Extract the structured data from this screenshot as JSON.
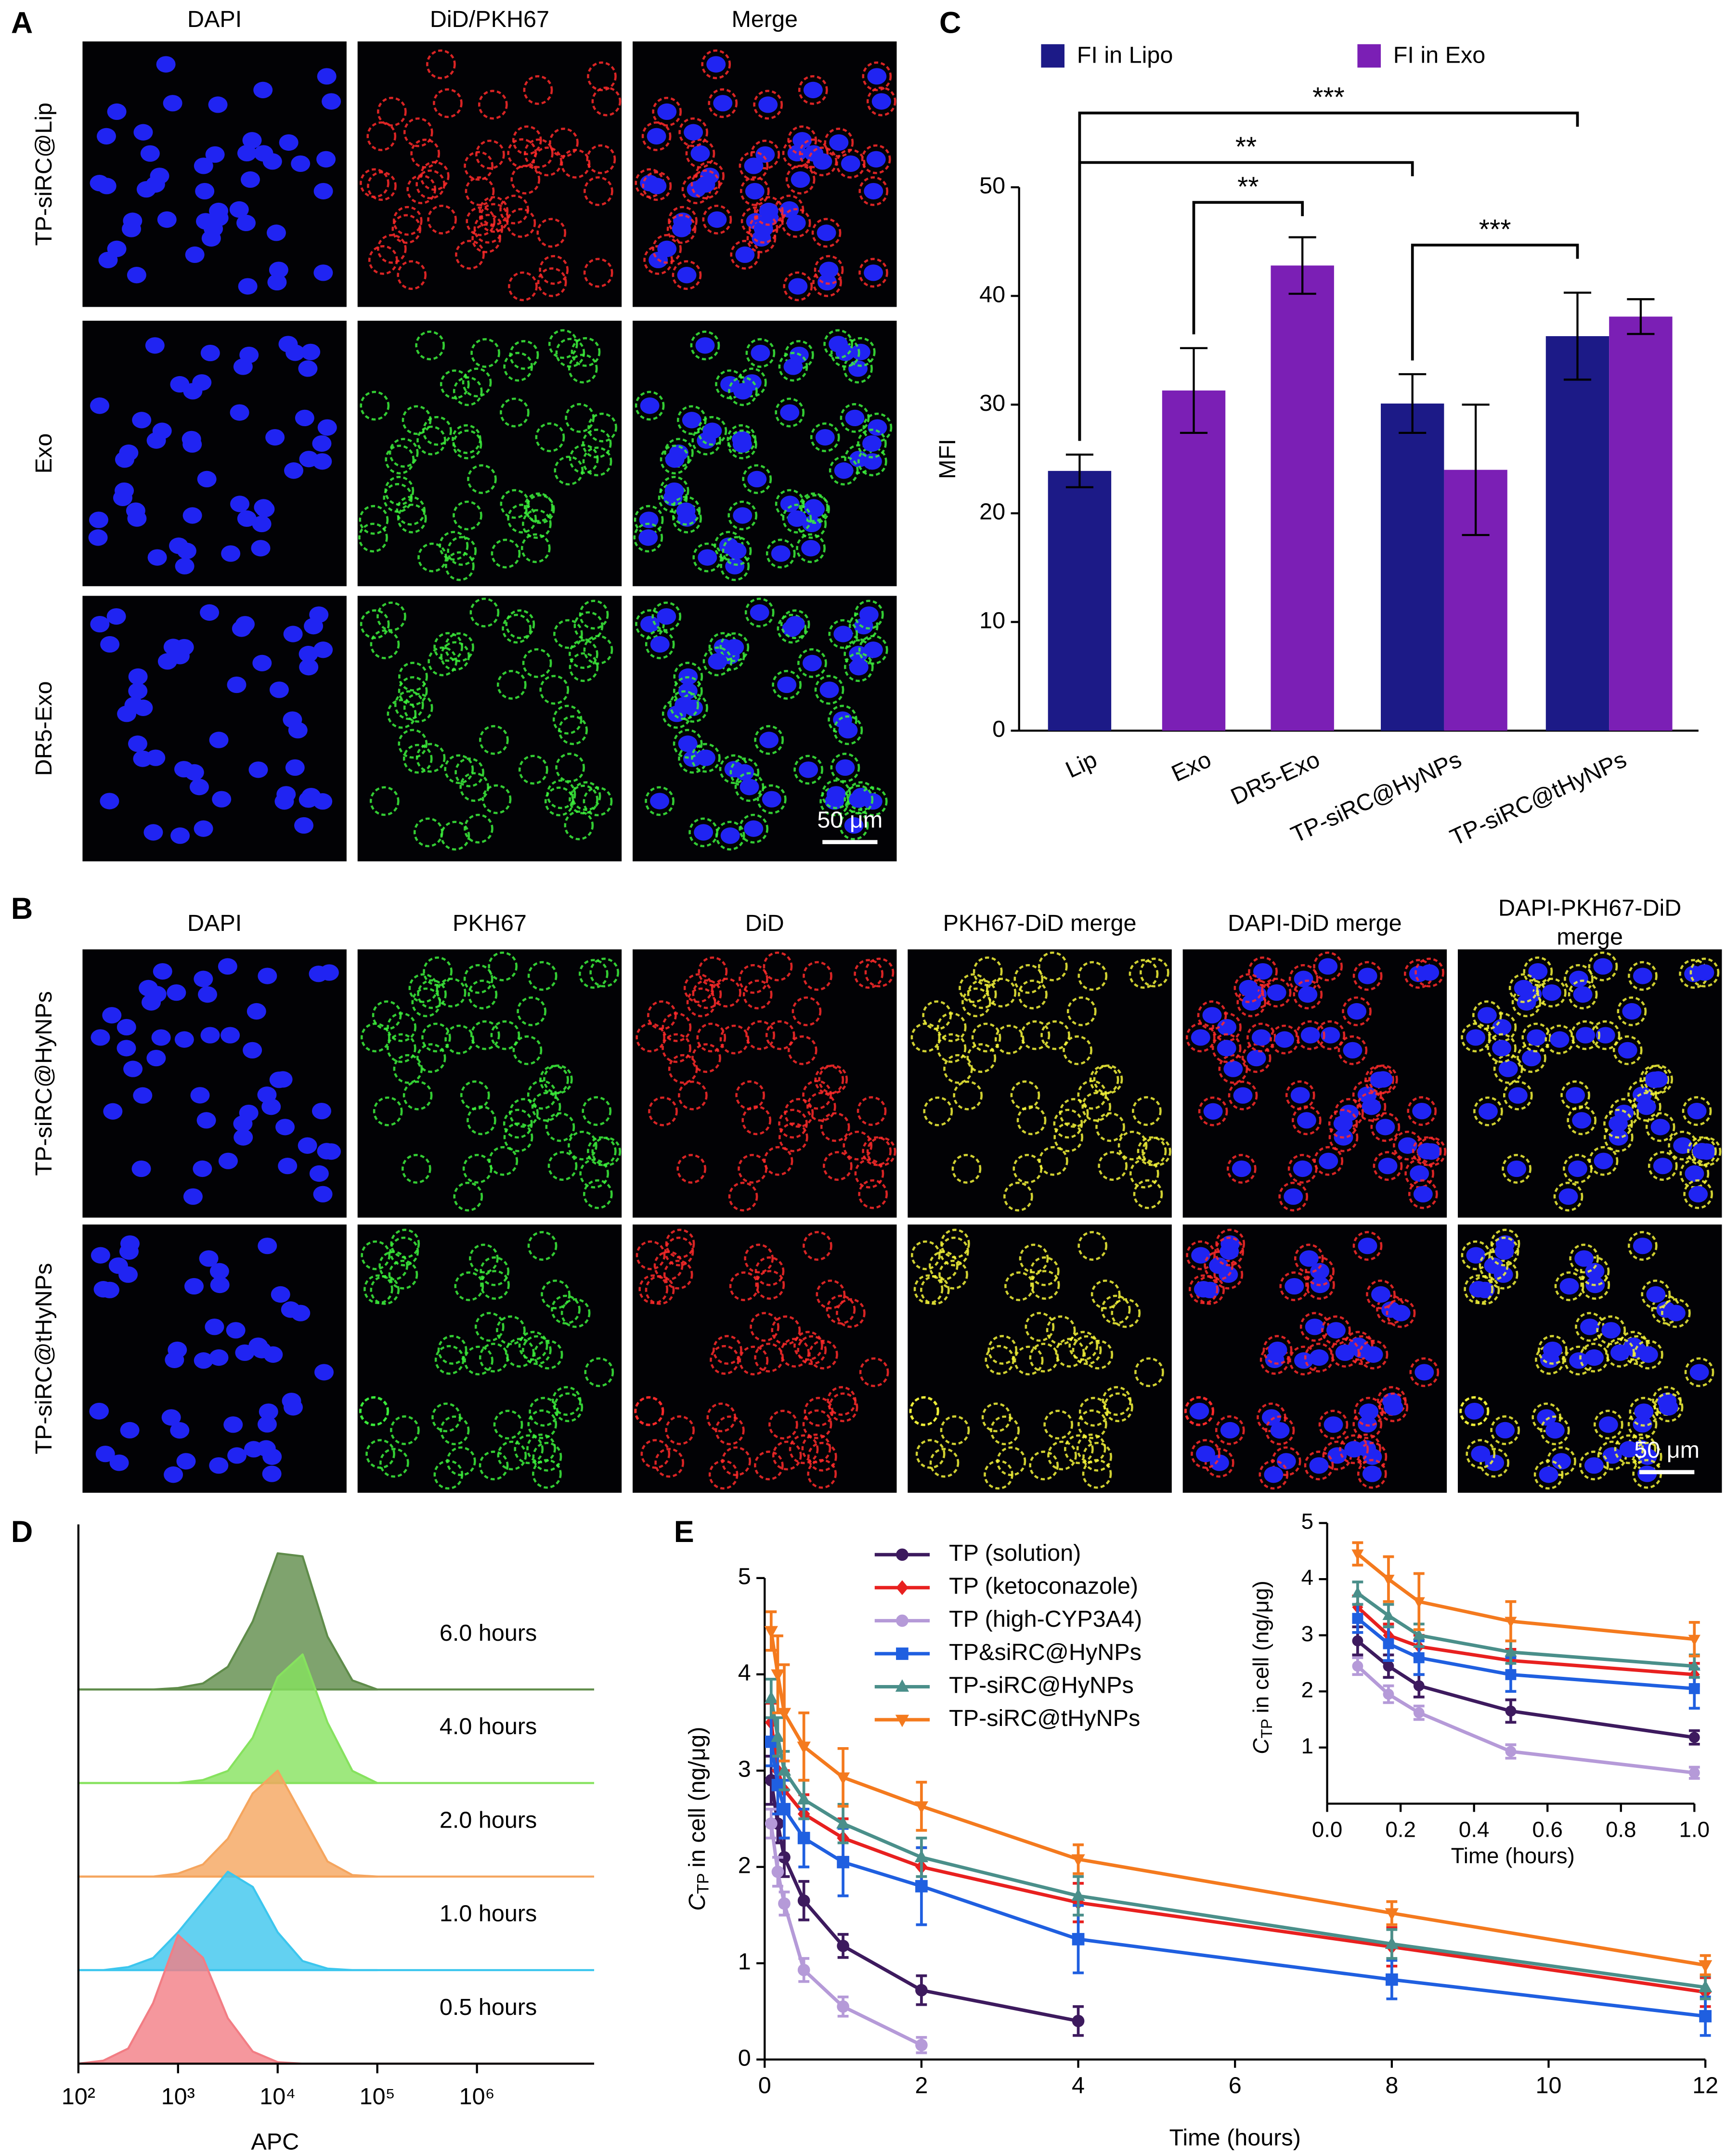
{
  "panel_labels": [
    "A",
    "B",
    "C",
    "D",
    "E"
  ],
  "panel_a": {
    "columns": [
      "DAPI",
      "DiD/PKH67",
      "Merge"
    ],
    "rows": [
      "TP-siRC@Lip",
      "Exo",
      "DR5-Exo"
    ],
    "scale_bar": "50 μm"
  },
  "panel_b": {
    "columns": [
      "DAPI",
      "PKH67",
      "DiD",
      "PKH67-DiD merge",
      "DAPI-DiD merge",
      "DAPI-PKH67-DiD merge"
    ],
    "rows": [
      "TP-siRC@HyNPs",
      "TP-siRC@tHyNPs"
    ],
    "scale_bar": "50 μm"
  },
  "chart_data": [
    {
      "type": "bar",
      "ylabel": "MFI",
      "categories": [
        "Lip",
        "Exo",
        "DR5-Exo",
        "TP-siRC@HyNPs",
        "TP-siRC@tHyNPs"
      ],
      "series": [
        {
          "name": "FI in Lipo",
          "color": "#1c1a87",
          "values": [
            23.9,
            null,
            null,
            30.1,
            36.3
          ],
          "errors": [
            1.5,
            null,
            null,
            2.7,
            4.0
          ]
        },
        {
          "name": "FI in Exo",
          "color": "#7b1fb5",
          "values": [
            null,
            31.3,
            42.8,
            24.0,
            38.1
          ],
          "errors": [
            null,
            3.9,
            2.6,
            6.0,
            1.6
          ]
        }
      ],
      "ylim": [
        0,
        50
      ],
      "yticks": [
        0,
        10,
        20,
        30,
        40,
        50
      ],
      "annotations": [
        "***",
        "**",
        "**",
        "***"
      ],
      "legend": "top"
    },
    {
      "type": "ridgeline",
      "xlabel": "APC",
      "xscale": "log",
      "xlim": [
        100,
        15000000
      ],
      "xticks": [
        {
          "value": 100,
          "label": "10²"
        },
        {
          "value": 1000,
          "label": "10³"
        },
        {
          "value": 10000,
          "label": "10⁴"
        },
        {
          "value": 100000,
          "label": "10⁵"
        },
        {
          "value": 1000000,
          "label": "10⁶"
        }
      ],
      "x": [
        100,
        178,
        316,
        562,
        1000,
        1778,
        3162,
        5623,
        10000,
        17783,
        31623,
        56234,
        100000
      ],
      "series": [
        {
          "name": "6.0 hours",
          "color": "#5f8c4a",
          "values": [
            0,
            0,
            0,
            0,
            1,
            4,
            15,
            45,
            90,
            88,
            35,
            6,
            0
          ]
        },
        {
          "name": "4.0 hours",
          "color": "#86e25e",
          "values": [
            0,
            0,
            0,
            0,
            0,
            2,
            8,
            30,
            70,
            85,
            40,
            8,
            0
          ]
        },
        {
          "name": "2.0 hours",
          "color": "#f5a55e",
          "values": [
            0,
            0,
            0,
            0,
            2,
            8,
            25,
            55,
            70,
            40,
            10,
            1,
            0
          ]
        },
        {
          "name": "1.0 hours",
          "color": "#3cc6ee",
          "values": [
            0,
            0,
            2,
            8,
            25,
            45,
            65,
            55,
            25,
            6,
            1,
            0,
            0
          ]
        },
        {
          "name": "0.5 hours",
          "color": "#f27d84",
          "values": [
            0,
            2,
            10,
            40,
            85,
            70,
            30,
            8,
            1,
            0,
            0,
            0,
            0
          ]
        }
      ]
    },
    {
      "type": "line",
      "xlabel": "Time (hours)",
      "ylabel": {
        "symbol": "C",
        "subscript": "TP",
        "text": "in cell (ng/μg)"
      },
      "x": [
        0.083,
        0.167,
        0.25,
        0.5,
        1,
        2,
        4,
        8,
        12
      ],
      "xlim": [
        0,
        12
      ],
      "xticks": [
        0,
        2,
        4,
        6,
        8,
        10,
        12
      ],
      "ylim": [
        0,
        5
      ],
      "yticks": [
        0,
        1,
        2,
        3,
        4,
        5
      ],
      "legend": "upper center",
      "series": [
        {
          "name": "TP (solution)",
          "color": "#3d1a5e",
          "marker": "circle",
          "values": [
            2.9,
            2.45,
            2.1,
            1.65,
            1.18,
            0.72,
            0.4,
            null,
            null
          ],
          "errors": [
            0.25,
            0.2,
            0.2,
            0.2,
            0.12,
            0.15,
            0.15,
            null,
            null
          ]
        },
        {
          "name": "TP (ketoconazole)",
          "color": "#e8201f",
          "marker": "diamond",
          "values": [
            3.5,
            3.0,
            2.8,
            2.55,
            2.3,
            2.0,
            1.63,
            1.17,
            0.7
          ],
          "errors": [
            0.2,
            0.2,
            0.2,
            0.2,
            0.2,
            0.2,
            0.2,
            0.2,
            0.15
          ]
        },
        {
          "name": "TP (high-CYP3A4)",
          "color": "#b59ad8",
          "marker": "circle",
          "values": [
            2.45,
            1.95,
            1.62,
            0.93,
            0.55,
            0.15,
            null,
            null,
            null
          ],
          "errors": [
            0.15,
            0.15,
            0.12,
            0.12,
            0.1,
            0.08,
            null,
            null,
            null
          ]
        },
        {
          "name": "TP&siRC@HyNPs",
          "color": "#1f5fe0",
          "marker": "square",
          "values": [
            3.3,
            2.85,
            2.6,
            2.3,
            2.05,
            1.8,
            1.25,
            0.83,
            0.45
          ],
          "errors": [
            0.25,
            0.3,
            0.3,
            0.3,
            0.35,
            0.4,
            0.35,
            0.2,
            0.2
          ]
        },
        {
          "name": "TP-siRC@HyNPs",
          "color": "#4a8f8a",
          "marker": "triangle",
          "values": [
            3.75,
            3.35,
            3.0,
            2.7,
            2.45,
            2.1,
            1.7,
            1.2,
            0.75
          ],
          "errors": [
            0.2,
            0.2,
            0.2,
            0.2,
            0.2,
            0.2,
            0.2,
            0.15,
            0.12
          ]
        },
        {
          "name": "TP-siRC@tHyNPs",
          "color": "#f47a1e",
          "marker": "triangle-down",
          "values": [
            4.45,
            4.0,
            3.6,
            3.25,
            2.93,
            2.63,
            2.08,
            1.52,
            0.98
          ],
          "errors": [
            0.2,
            0.4,
            0.5,
            0.35,
            0.3,
            0.25,
            0.15,
            0.12,
            0.1
          ]
        }
      ]
    },
    {
      "type": "line",
      "xlabel": "Time (hours)",
      "ylabel": {
        "symbol": "C",
        "subscript": "TP",
        "text": "in cell (ng/μg)"
      },
      "x": [
        0.083,
        0.167,
        0.25,
        0.5,
        1
      ],
      "xlim": [
        0,
        1
      ],
      "xticks": [
        {
          "value": 0,
          "label": "0.0"
        },
        {
          "value": 0.2,
          "label": "0.2"
        },
        {
          "value": 0.4,
          "label": "0.4"
        },
        {
          "value": 0.6,
          "label": "0.6"
        },
        {
          "value": 0.8,
          "label": "0.8"
        },
        {
          "value": 1,
          "label": "1.0"
        }
      ],
      "ylim": [
        0,
        5
      ],
      "yticks": [
        1,
        2,
        3,
        4,
        5
      ],
      "series": [
        {
          "color": "#3d1a5e",
          "marker": "circle",
          "values": [
            2.9,
            2.45,
            2.1,
            1.65,
            1.18
          ],
          "errors": [
            0.25,
            0.2,
            0.2,
            0.2,
            0.12
          ]
        },
        {
          "color": "#e8201f",
          "marker": "diamond",
          "values": [
            3.5,
            3.0,
            2.8,
            2.55,
            2.3
          ],
          "errors": [
            0.2,
            0.2,
            0.2,
            0.2,
            0.2
          ]
        },
        {
          "color": "#b59ad8",
          "marker": "circle",
          "values": [
            2.45,
            1.95,
            1.62,
            0.93,
            0.55
          ],
          "errors": [
            0.15,
            0.15,
            0.12,
            0.12,
            0.1
          ]
        },
        {
          "color": "#1f5fe0",
          "marker": "square",
          "values": [
            3.3,
            2.85,
            2.6,
            2.3,
            2.05
          ],
          "errors": [
            0.25,
            0.3,
            0.3,
            0.3,
            0.35
          ]
        },
        {
          "color": "#4a8f8a",
          "marker": "triangle",
          "values": [
            3.75,
            3.35,
            3.0,
            2.7,
            2.45
          ],
          "errors": [
            0.2,
            0.2,
            0.2,
            0.2,
            0.2
          ]
        },
        {
          "color": "#f47a1e",
          "marker": "triangle-down",
          "values": [
            4.45,
            4.0,
            3.6,
            3.25,
            2.93
          ],
          "errors": [
            0.2,
            0.4,
            0.5,
            0.35,
            0.3
          ]
        }
      ]
    }
  ]
}
